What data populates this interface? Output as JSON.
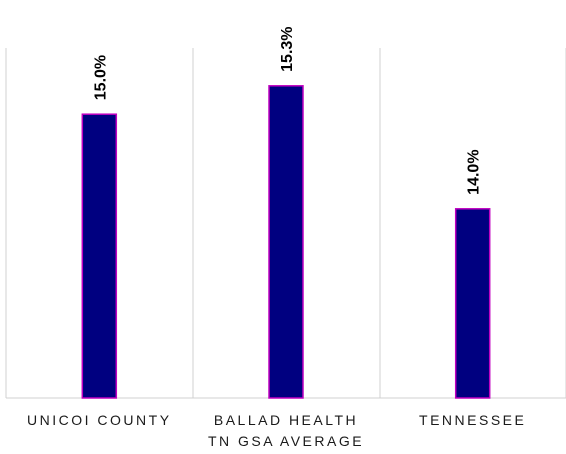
{
  "chart_data": {
    "type": "bar",
    "categories": [
      [
        "UNICOI COUNTY"
      ],
      [
        "BALLAD HEALTH",
        "TN GSA AVERAGE"
      ],
      [
        "TENNESSEE"
      ]
    ],
    "values": [
      15.0,
      15.3,
      14.0
    ],
    "data_labels": [
      "15.0%",
      "15.3%",
      "14.0%"
    ],
    "ylim": [
      12.0,
      15.7
    ],
    "grid": false,
    "category_dividers": true,
    "colors": {
      "bar_fill": "#000080",
      "bar_stroke": "#C000C0",
      "divider": "#d0d0d0"
    }
  }
}
